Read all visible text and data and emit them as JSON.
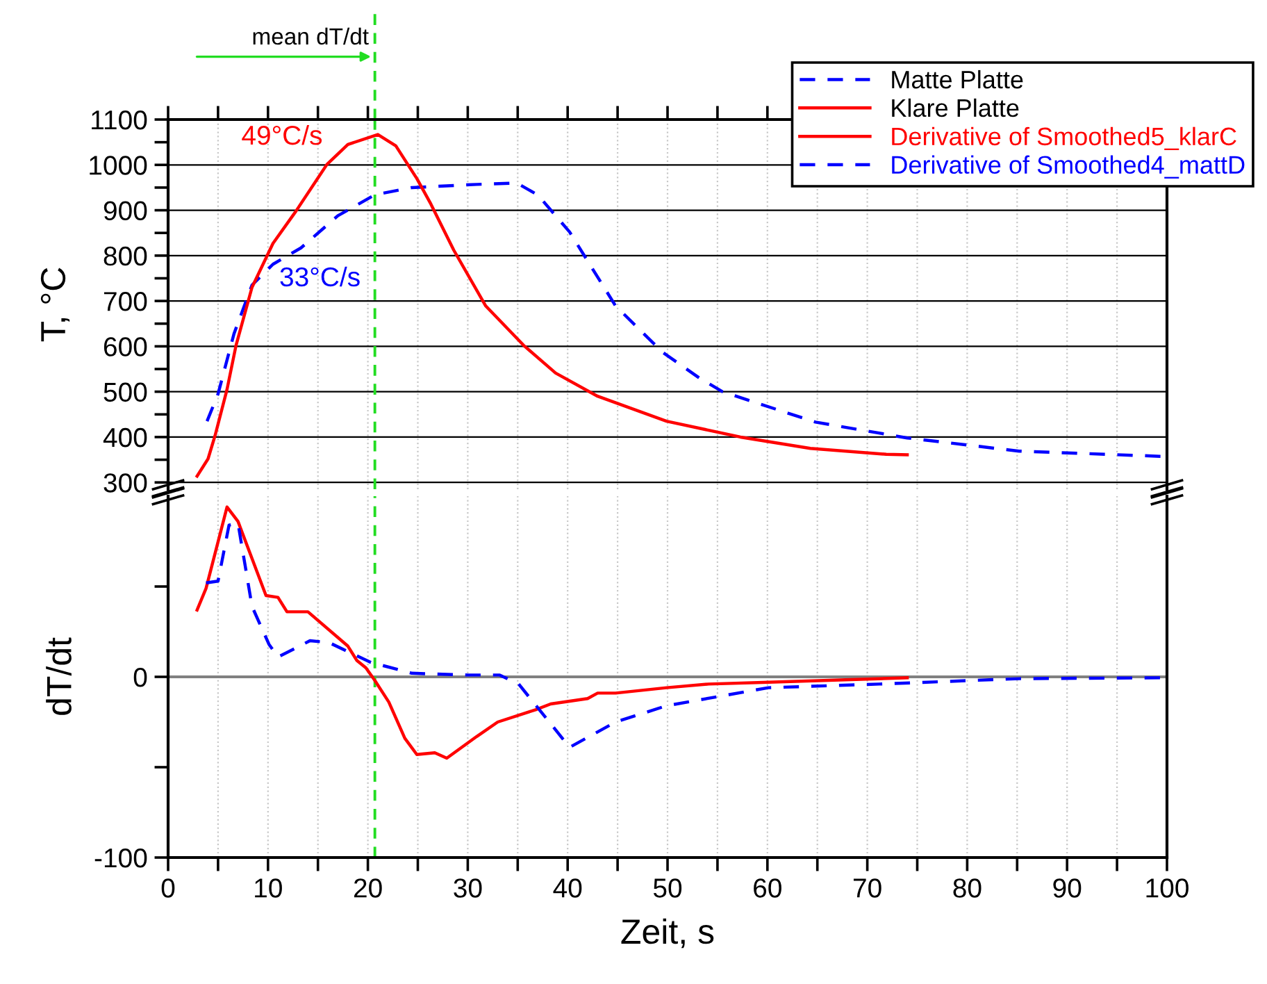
{
  "chart_data": [
    {
      "type": "line",
      "ylabel": "T, °C",
      "xlim": [
        0,
        100
      ],
      "ylim": [
        285,
        1100
      ],
      "xticks": [
        0,
        {
          "value": 5,
          "label": null
        },
        10,
        {
          "value": 15,
          "label": null
        },
        20,
        {
          "value": 25,
          "label": null
        },
        30,
        {
          "value": 35,
          "label": null
        },
        40,
        {
          "value": 45,
          "label": null
        },
        50,
        {
          "value": 55,
          "label": null
        },
        60,
        {
          "value": 65,
          "label": null
        },
        70,
        {
          "value": 75,
          "label": null
        },
        80,
        {
          "value": 85,
          "label": null
        },
        90,
        {
          "value": 95,
          "label": null
        },
        100
      ],
      "yticks": [
        300,
        {
          "value": 350,
          "label": null
        },
        400,
        {
          "value": 450,
          "label": null
        },
        500,
        {
          "value": 550,
          "label": null
        },
        600,
        {
          "value": 650,
          "label": null
        },
        700,
        {
          "value": 750,
          "label": null
        },
        800,
        {
          "value": 850,
          "label": null
        },
        900,
        {
          "value": 950,
          "label": null
        },
        1000,
        {
          "value": 1050,
          "label": null
        },
        1100
      ],
      "tick_labels": "y",
      "grid": true,
      "legend": "top right",
      "series": [
        {
          "name": "Matte Platte",
          "color": "#0000ff",
          "line_style": "dashed",
          "x": [
            3.9,
            5.0,
            6.6,
            8.4,
            10.5,
            13.3,
            17.0,
            20.7,
            24.4,
            30.9,
            34.9,
            37.0,
            40.2,
            44.8,
            49.5,
            53.2,
            55.5,
            64.8,
            74.0,
            85.2,
            100
          ],
          "values": [
            435,
            495,
            628,
            735,
            781,
            817,
            888,
            934,
            950,
            957,
            960,
            934,
            852,
            689,
            587,
            530,
            500,
            433,
            398,
            369,
            357
          ]
        },
        {
          "name": "Klare Platte",
          "color": "#ff0000",
          "line_style": "solid",
          "x": [
            2.9,
            4.0,
            4.7,
            5.9,
            6.8,
            8.4,
            10.5,
            12.8,
            15.9,
            18.0,
            21.0,
            22.8,
            24.9,
            26.3,
            28.6,
            31.8,
            35.6,
            38.8,
            43.0,
            49.9,
            57.3,
            64.3,
            71.9,
            74.0
          ],
          "values": [
            314,
            352,
            403,
            505,
            602,
            730,
            827,
            898,
            1001,
            1045,
            1067,
            1042,
            970,
            914,
            812,
            689,
            602,
            541,
            490,
            435,
            400,
            375,
            362,
            361
          ]
        }
      ],
      "ref_lines": [
        {
          "axis": "x",
          "value": 20.7,
          "label": "mean dT/dt",
          "color": "#22dd22",
          "line_style": "dashed"
        }
      ],
      "annotations": [
        "33°C/s",
        "49°C/s"
      ]
    },
    {
      "type": "line",
      "ylabel": "dT/dt",
      "xlabel": "Zeit, s",
      "xlim": [
        0,
        100
      ],
      "ylim": [
        -100,
        100
      ],
      "xticks": [
        0,
        {
          "value": 5,
          "label": null
        },
        10,
        {
          "value": 15,
          "label": null
        },
        20,
        {
          "value": 25,
          "label": null
        },
        30,
        {
          "value": 35,
          "label": null
        },
        40,
        {
          "value": 45,
          "label": null
        },
        50,
        {
          "value": 55,
          "label": null
        },
        60,
        {
          "value": 65,
          "label": null
        },
        70,
        {
          "value": 75,
          "label": null
        },
        80,
        {
          "value": 85,
          "label": null
        },
        90,
        {
          "value": 95,
          "label": null
        },
        100
      ],
      "yticks": [
        -100,
        {
          "value": -50,
          "label": null
        },
        0,
        {
          "value": 50,
          "label": null
        }
      ],
      "grid": "x",
      "legend": "top right",
      "series": [
        {
          "name": "Derivative of Smoothed5_klarC",
          "color": "#ff0000",
          "line_style": "solid",
          "x": [
            2.9,
            3.8,
            5.9,
            7.0,
            9.8,
            11.0,
            11.9,
            14.0,
            18.0,
            18.9,
            19.8,
            20.7,
            22.1,
            23.7,
            24.9,
            26.7,
            27.9,
            30.9,
            33.0,
            36.9,
            38.3,
            42.0,
            43.0,
            44.8,
            49.9,
            54.1,
            60.1,
            74.0
          ],
          "values": [
            37,
            49,
            94,
            86,
            45,
            44,
            36,
            36,
            17,
            9,
            5,
            -2,
            -14,
            -34,
            -43,
            -42,
            -45,
            -33,
            -25,
            -18,
            -15,
            -12,
            -9,
            -9,
            -6,
            -4,
            -3,
            -0.5
          ]
        },
        {
          "name": "Derivative of Smoothed4_mattD",
          "color": "#0000ff",
          "line_style": "dashed",
          "x": [
            3.8,
            5.0,
            6.1,
            7.0,
            8.4,
            10.1,
            11.0,
            12.1,
            14.2,
            16.1,
            18.0,
            20.3,
            24.4,
            30.0,
            33.2,
            35.1,
            40.2,
            44.8,
            49.9,
            60.1,
            71.2,
            85.2,
            100
          ],
          "values": [
            52,
            53,
            84,
            85,
            39,
            18,
            11,
            14,
            20,
            19,
            14,
            8,
            2,
            1,
            1,
            -4,
            -39,
            -25,
            -16,
            -6,
            -4,
            -1,
            -0.5
          ]
        }
      ],
      "ref_lines": [
        {
          "axis": "y",
          "value": 0,
          "color": "#808080",
          "line_style": "solid"
        },
        {
          "axis": "x",
          "value": 20.7,
          "color": "#22dd22",
          "line_style": "dashed"
        }
      ]
    }
  ]
}
